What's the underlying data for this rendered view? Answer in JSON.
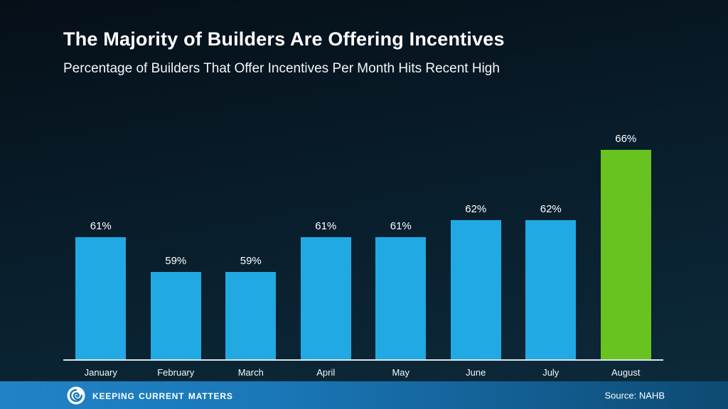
{
  "header": {
    "title": "The Majority of Builders Are Offering Incentives",
    "subtitle": "Percentage of Builders That Offer Incentives Per Month Hits Recent High"
  },
  "chart_data": {
    "type": "bar",
    "title": "Percentage of Builders That Offer Incentives Per Month",
    "categories": [
      "January",
      "February",
      "March",
      "April",
      "May",
      "June",
      "July",
      "August"
    ],
    "values": [
      61,
      59,
      59,
      61,
      61,
      62,
      62,
      66
    ],
    "value_suffix": "%",
    "xlabel": "",
    "ylabel": "",
    "ylim": [
      54,
      68.5
    ],
    "grid": false,
    "legend": false,
    "bar_color": "#21a9e3",
    "highlight_index": 7,
    "highlight_color": "#68c21f"
  },
  "footer": {
    "brand": "Keeping Current Matters",
    "source": "Source: NAHB"
  },
  "colors": {
    "background_top": "#050f18",
    "background_bottom": "#0d2b3c",
    "text": "#ffffff",
    "axis_line": "#dde6ec",
    "footer_left": "#2183c6",
    "footer_right": "#0d4a72"
  }
}
